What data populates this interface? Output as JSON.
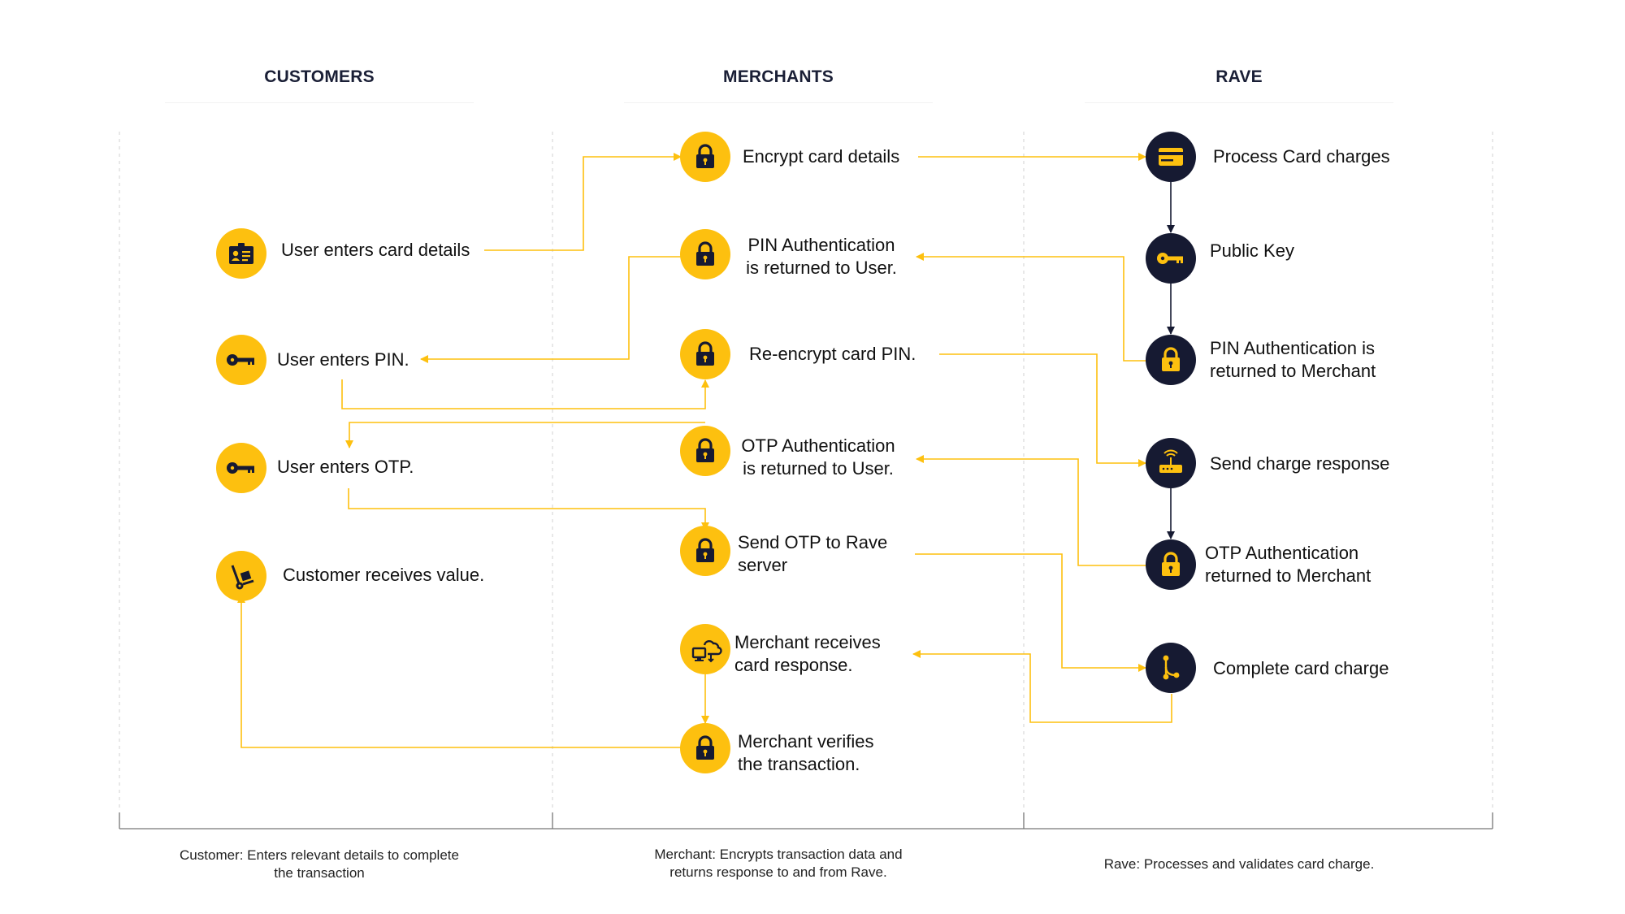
{
  "lanes": {
    "customers": {
      "title": "CUSTOMERS",
      "footer_line1": "Customer: Enters relevant details to complete",
      "footer_line2": "the transaction"
    },
    "merchants": {
      "title": "MERCHANTS",
      "footer_line1": "Merchant: Encrypts transaction data and",
      "footer_line2": "returns response to and from Rave."
    },
    "rave": {
      "title": "RAVE",
      "footer_line1": "Rave: Processes and validates card charge."
    }
  },
  "customer_steps": {
    "card_details": {
      "line1": "User enters card details",
      "icon": "id-card-icon"
    },
    "pin": {
      "line1": "User enters PIN.",
      "icon": "key-icon"
    },
    "otp": {
      "line1": "User enters OTP.",
      "icon": "key-icon"
    },
    "value": {
      "line1": "Customer receives value.",
      "icon": "hand-truck-icon"
    }
  },
  "merchant_steps": {
    "encrypt": {
      "line1": "Encrypt card details",
      "icon": "lock-icon"
    },
    "pin_return": {
      "line1": "PIN Authentication",
      "line2": "is returned to User.",
      "icon": "lock-icon"
    },
    "reencrypt": {
      "line1": "Re-encrypt card PIN.",
      "icon": "lock-icon"
    },
    "otp_return": {
      "line1": "OTP Authentication",
      "line2": "is returned to User.",
      "icon": "lock-icon"
    },
    "send_otp": {
      "line1": "Send OTP to Rave",
      "line2": "server",
      "icon": "lock-icon"
    },
    "receives": {
      "line1": "Merchant receives",
      "line2": "card response.",
      "icon": "cloud-monitor-icon"
    },
    "verifies": {
      "line1": "Merchant verifies",
      "line2": "the transaction.",
      "icon": "lock-icon"
    }
  },
  "rave_steps": {
    "process": {
      "line1": "Process Card charges",
      "icon": "credit-card-icon"
    },
    "public_key": {
      "line1": "Public Key",
      "icon": "key-icon"
    },
    "pin_auth": {
      "line1": "PIN Authentication is",
      "line2": "returned to Merchant",
      "icon": "lock-icon"
    },
    "send_response": {
      "line1": "Send charge response",
      "icon": "router-icon"
    },
    "otp_auth": {
      "line1": "OTP Authentication",
      "line2": "returned to Merchant",
      "icon": "lock-icon"
    },
    "complete": {
      "line1": "Complete card charge",
      "icon": "branch-icon"
    }
  },
  "colors": {
    "accent": "#fdc00f",
    "dark": "#161a32",
    "connector": "#fdc00f",
    "dark_connector": "#161a32"
  }
}
